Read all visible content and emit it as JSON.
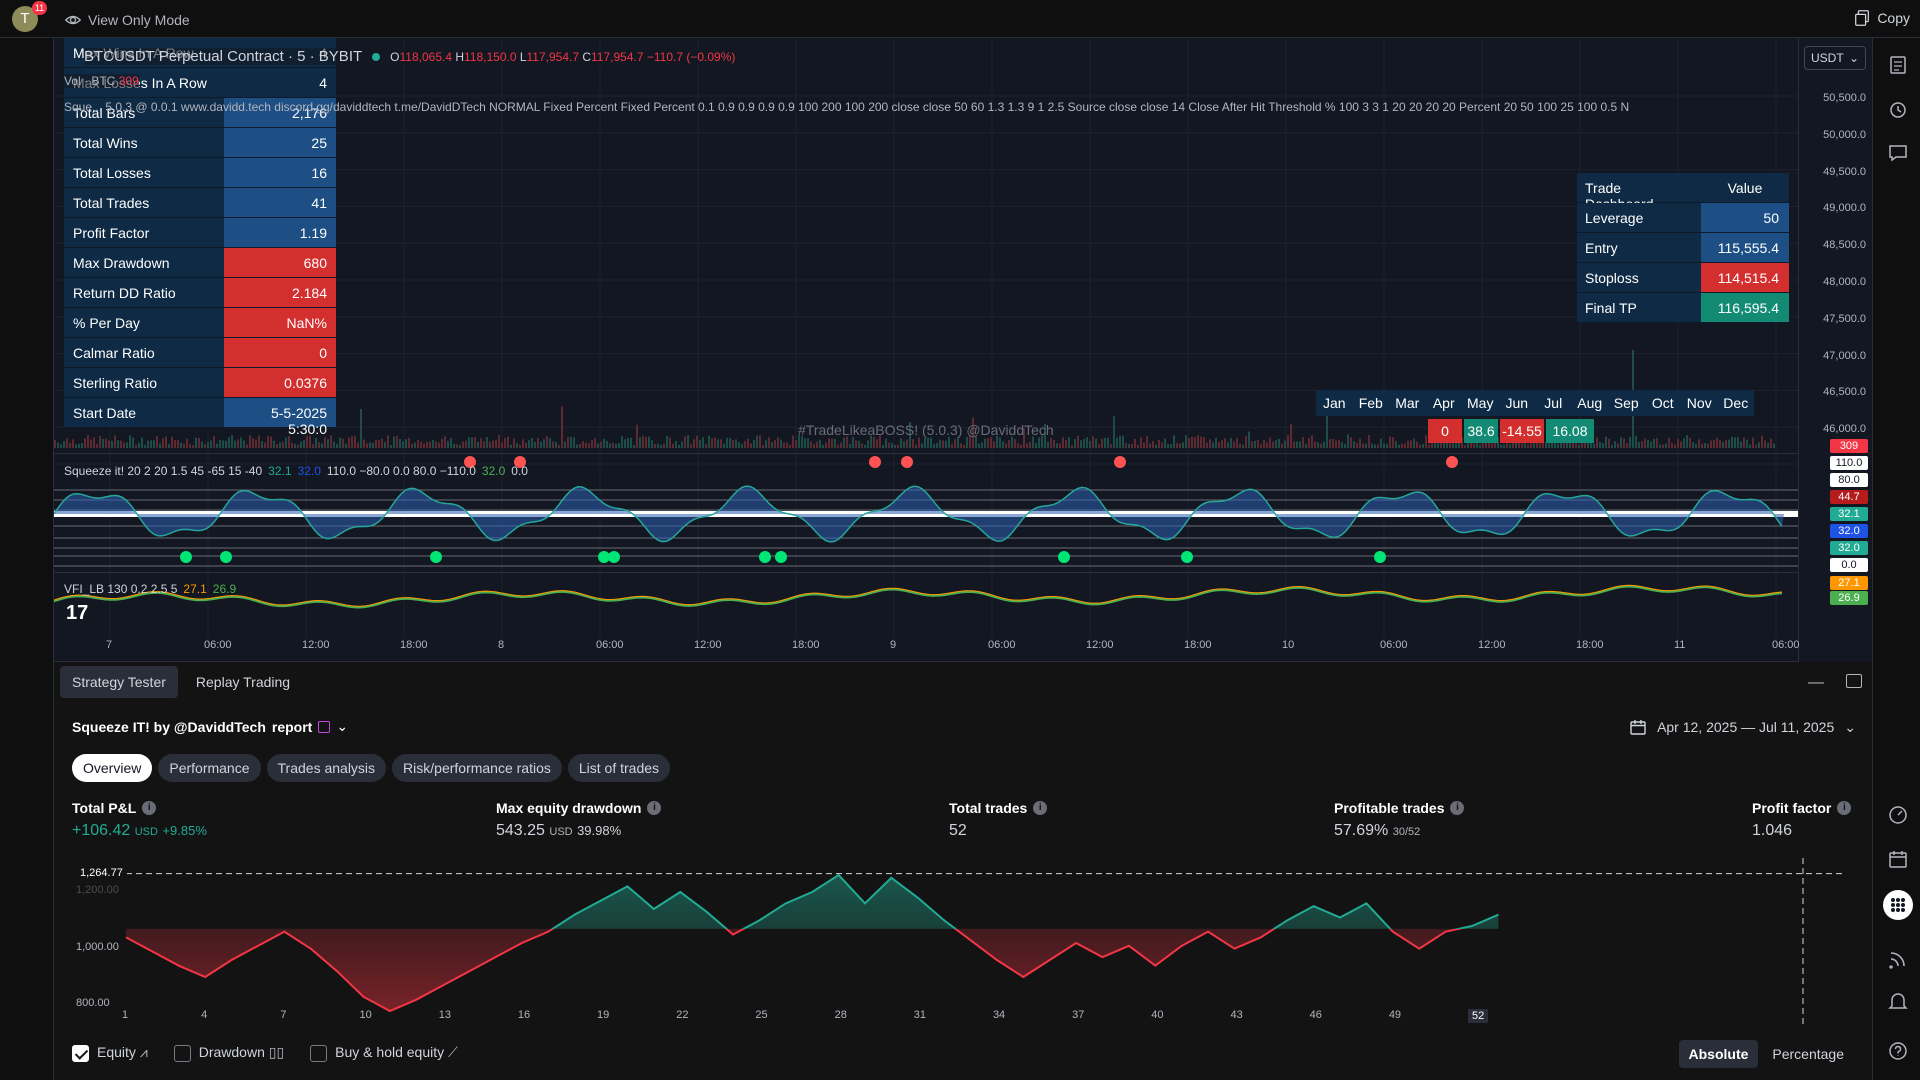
{
  "topbar": {
    "avatar_letter": "T",
    "avatar_badge": "11",
    "view_only_label": "View Only Mode",
    "copy_label": "Copy"
  },
  "symbol": {
    "title": "BTCUSDT Perpetual Contract · 5 · BYBIT",
    "open": "118,065.4",
    "high": "118,150.0",
    "low": "117,954.7",
    "close": "117,954.7",
    "change": "−110.7 (−0.09%)",
    "vol_label": "Vol · BTC",
    "vol_value": "309",
    "currency": "USDT"
  },
  "indicator_line": "Sque...  5.0.3 @ 0.0.1 www.davidd.tech discord.gg/daviddtech t.me/DavidDTech NORMAL Fixed Percent Fixed Percent 0.1 0.9 0.9 0.9 0.9 100 200 100 200 close close 50 60 1.3 1.3 9 1 2.5 Source close close 14 Close After Hit Threshold % 100 3 3 1 20 20 20 20 Percent 20 50 100 25 100 0.5 N",
  "stats_table": [
    {
      "label": "Max Wins In A Row",
      "value": "4",
      "style": "blue"
    },
    {
      "label": "Max Losses In A Row",
      "value": "4",
      "style": "blue"
    },
    {
      "label": "Total Bars",
      "value": "2,176",
      "style": ""
    },
    {
      "label": "Total Wins",
      "value": "25",
      "style": ""
    },
    {
      "label": "Total Losses",
      "value": "16",
      "style": ""
    },
    {
      "label": "Total Trades",
      "value": "41",
      "style": ""
    },
    {
      "label": "Profit Factor",
      "value": "1.19",
      "style": ""
    },
    {
      "label": "Max Drawdown",
      "value": "680",
      "style": "red"
    },
    {
      "label": "Return DD Ratio",
      "value": "2.184",
      "style": "red"
    },
    {
      "label": "% Per Day",
      "value": "NaN%",
      "style": "red"
    },
    {
      "label": "Calmar Ratio",
      "value": "0",
      "style": "red"
    },
    {
      "label": "Sterling Ratio",
      "value": "0.0376",
      "style": "red"
    },
    {
      "label": "Start Date",
      "value": "5-5-2025 5:30:0",
      "style": ""
    }
  ],
  "trade_dashboard": {
    "header_label": "Trade Dashboard",
    "header_value": "Value",
    "rows": [
      {
        "label": "Leverage",
        "value": "50",
        "style": ""
      },
      {
        "label": "Entry",
        "value": "115,555.4",
        "style": ""
      },
      {
        "label": "Stoploss",
        "value": "114,515.4",
        "style": "red"
      },
      {
        "label": "Final TP",
        "value": "116,595.4",
        "style": "teal"
      }
    ]
  },
  "months": [
    "Jan",
    "Feb",
    "Mar",
    "Apr",
    "May",
    "Jun",
    "Jul",
    "Aug",
    "Sep",
    "Oct",
    "Nov",
    "Dec"
  ],
  "month_values": [
    {
      "value": "0",
      "color": "#d32f2f"
    },
    {
      "value": "38.6",
      "color": "#138a74"
    },
    {
      "value": "-14.55",
      "color": "#d32f2f"
    },
    {
      "value": "16.08",
      "color": "#138a74"
    }
  ],
  "watermark": "#TradeLikeaBOSS! (5.0.3) @DaviddTech",
  "price_axis": [
    "50,500.0",
    "50,000.0",
    "49,500.0",
    "49,000.0",
    "48,500.0",
    "48,000.0",
    "47,500.0",
    "47,000.0",
    "46,500.0",
    "46,000.0"
  ],
  "price_tag": "309",
  "squeeze_header": {
    "name": "Squeeze it! 20 2 20 1.5 45 -65 15 -40",
    "v1": "32.1",
    "v2": "32.0",
    "rest": "110.0 −80.0 0.0 80.0 −110.0",
    "v3": "32.0",
    "v4": "0.0"
  },
  "squeeze_tags": [
    {
      "value": "110.0",
      "bg": "#ffffff",
      "fg": "#131722"
    },
    {
      "value": "80.0",
      "bg": "#ffffff",
      "fg": "#131722"
    },
    {
      "value": "44.7",
      "bg": "#b71c1c",
      "fg": "#ffffff"
    },
    {
      "value": "32.1",
      "bg": "#22ab94",
      "fg": "#ffffff"
    },
    {
      "value": "32.0",
      "bg": "#1e53e5",
      "fg": "#ffffff"
    },
    {
      "value": "32.0",
      "bg": "#22ab94",
      "fg": "#ffffff"
    },
    {
      "value": "0.0",
      "bg": "#ffffff",
      "fg": "#131722"
    }
  ],
  "vfi_header": {
    "name": "VFI_LB 130 0.2 2.5 5",
    "v1": "27.1",
    "v2": "26.9"
  },
  "vfi_tags": [
    {
      "value": "27.1",
      "bg": "#ff9800"
    },
    {
      "value": "26.9",
      "bg": "#4caf50"
    }
  ],
  "time_axis": [
    "7",
    "06:00",
    "12:00",
    "18:00",
    "8",
    "06:00",
    "12:00",
    "18:00",
    "9",
    "06:00",
    "12:00",
    "18:00",
    "10",
    "06:00",
    "12:00",
    "18:00",
    "11",
    "06:00"
  ],
  "bottom": {
    "tabs": [
      "Strategy Tester",
      "Replay Trading"
    ],
    "report_title": "Squeeze IT! by @DaviddTech",
    "report_suffix": "report",
    "date_range": "Apr 12, 2025 — Jul 11, 2025",
    "pills": [
      "Overview",
      "Performance",
      "Trades analysis",
      "Risk/performance ratios",
      "List of trades"
    ],
    "kpis": [
      {
        "label": "Total P&L",
        "value": "+106.42",
        "unit": "USD",
        "pct": "+9.85%"
      },
      {
        "label": "Max equity drawdown",
        "value": "543.25",
        "unit": "USD",
        "pct": "39.98%"
      },
      {
        "label": "Total trades",
        "value": "52",
        "unit": "",
        "pct": ""
      },
      {
        "label": "Profitable trades",
        "value": "57.69%",
        "unit": "30/52",
        "pct": ""
      },
      {
        "label": "Profit factor",
        "value": "1.046",
        "unit": "",
        "pct": ""
      }
    ],
    "legend": [
      "Equity",
      "Drawdown",
      "Buy & hold equity"
    ],
    "modes": [
      "Absolute",
      "Percentage"
    ]
  },
  "chart_data": {
    "type": "line",
    "title": "",
    "xlabel": "",
    "ylabel": "",
    "x_ticks": [
      "1",
      "4",
      "7",
      "10",
      "13",
      "16",
      "19",
      "22",
      "25",
      "28",
      "31",
      "34",
      "37",
      "40",
      "43",
      "46",
      "49",
      "52"
    ],
    "y_ticks": [
      "1,200.00",
      "1,000.00",
      "800.00"
    ],
    "reference_line": {
      "label": "1,264.77",
      "value": 1264.77
    },
    "baseline": 1070,
    "ylim": [
      720,
      1320
    ],
    "series": [
      {
        "x": [
          1,
          2,
          3,
          4,
          5,
          6,
          7,
          8,
          9,
          10,
          11,
          12,
          13,
          14,
          15,
          16,
          17,
          18,
          19,
          20,
          21,
          22,
          23,
          24,
          25,
          26,
          27,
          28,
          29,
          30,
          31,
          32,
          33,
          34,
          35,
          36,
          37,
          38,
          39,
          40,
          41,
          42,
          43,
          44,
          45,
          46,
          47,
          48,
          49,
          50,
          51,
          52,
          53
        ],
        "values": [
          1040,
          990,
          940,
          900,
          960,
          1010,
          1060,
          1000,
          920,
          830,
          780,
          820,
          870,
          920,
          970,
          1020,
          1060,
          1120,
          1170,
          1220,
          1140,
          1200,
          1130,
          1050,
          1100,
          1160,
          1200,
          1260,
          1160,
          1250,
          1180,
          1100,
          1030,
          960,
          900,
          960,
          1020,
          970,
          1010,
          940,
          1010,
          1060,
          1000,
          1040,
          1100,
          1150,
          1110,
          1160,
          1060,
          1000,
          1060,
          1080,
          1120
        ]
      }
    ]
  }
}
